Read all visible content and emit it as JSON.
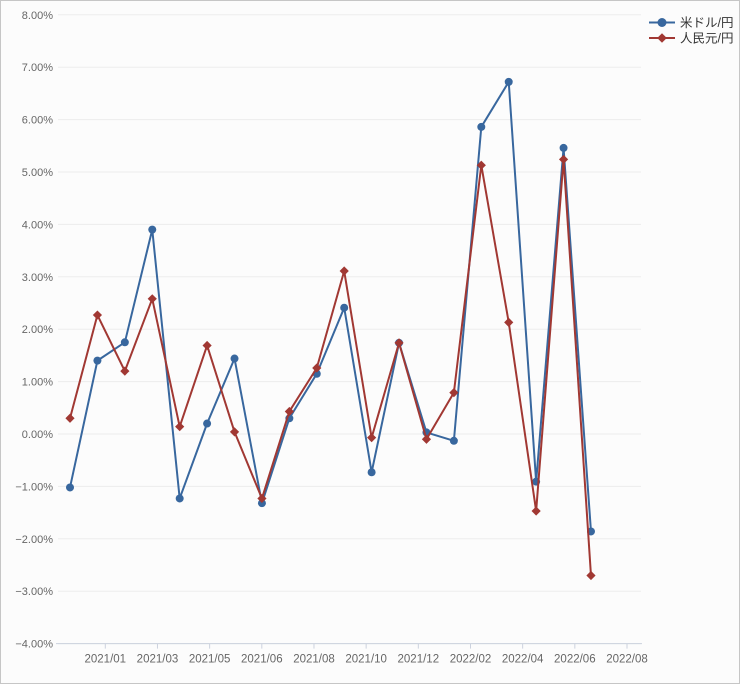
{
  "page": {
    "background": "#fcfcfc",
    "border_color": "#c6c6c6"
  },
  "legend": {
    "position": "top-right",
    "items": [
      {
        "label": "米ドル/円",
        "color": "#38679E",
        "marker": "circle"
      },
      {
        "label": "人民元/円",
        "color": "#A13833",
        "marker": "diamond"
      }
    ]
  },
  "chart_data": {
    "type": "line",
    "title": "",
    "xlabel": "",
    "ylabel": "",
    "grid": true,
    "legend_position": "top-right",
    "ylim": [
      -4,
      8
    ],
    "y_tick_step": 1,
    "y_tick_labels": [
      "8.00%",
      "7.00%",
      "6.00%",
      "5.00%",
      "4.00%",
      "3.00%",
      "2.00%",
      "1.00%",
      "0.00%",
      "−1.00%",
      "−2.00%",
      "−3.00%",
      "−4.00%"
    ],
    "x_tick_labels": [
      "2021/01",
      "2021/03",
      "2021/05",
      "2021/06",
      "2021/08",
      "2021/10",
      "2021/12",
      "2022/02",
      "2022/04",
      "2022/06",
      "2022/08"
    ],
    "colors": {
      "grid": "#ededed",
      "axis": "#ccd2de",
      "tick_text": "#666666",
      "legend_text": "#333333"
    },
    "series": [
      {
        "name": "米ドル/円",
        "color": "#38679E",
        "marker": "circle",
        "values": [
          -1.02,
          1.4,
          1.75,
          3.9,
          -1.23,
          0.2,
          1.44,
          -1.32,
          0.3,
          1.15,
          2.41,
          -0.73,
          1.74,
          0.03,
          -0.13,
          5.86,
          6.72,
          -0.91,
          5.46,
          -1.86
        ]
      },
      {
        "name": "人民元/円",
        "color": "#A13833",
        "marker": "diamond",
        "values": [
          0.3,
          2.27,
          1.2,
          2.58,
          0.14,
          1.69,
          0.04,
          -1.23,
          0.43,
          1.26,
          3.11,
          -0.07,
          1.74,
          -0.1,
          0.79,
          5.13,
          2.13,
          -1.47,
          5.24,
          -2.7
        ]
      }
    ]
  }
}
